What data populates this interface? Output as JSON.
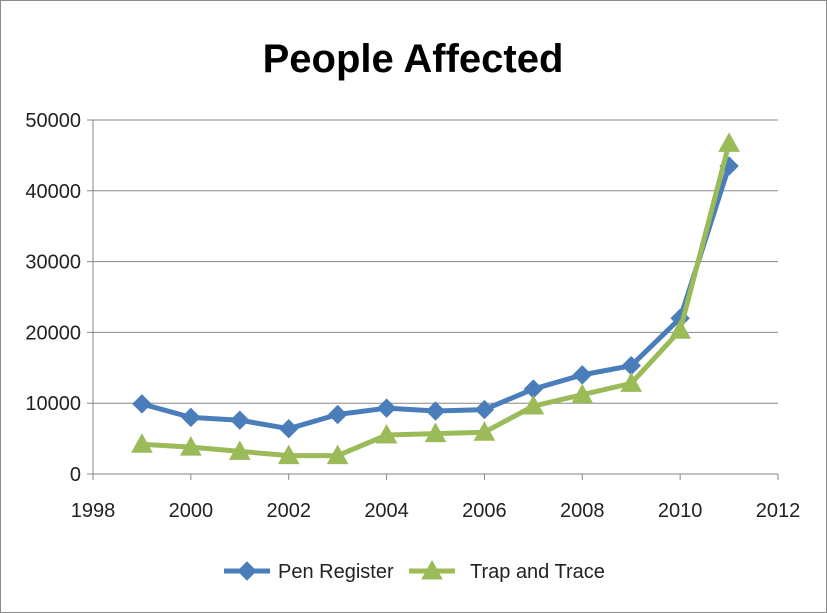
{
  "chart_data": {
    "type": "line",
    "title": "People Affected",
    "xlabel": "",
    "ylabel": "",
    "xlim": [
      1998,
      2012
    ],
    "ylim": [
      0,
      50000
    ],
    "x_ticks": [
      1998,
      2000,
      2002,
      2004,
      2006,
      2008,
      2010,
      2012
    ],
    "y_ticks": [
      0,
      10000,
      20000,
      30000,
      40000,
      50000
    ],
    "grid": "horizontal",
    "legend_position": "bottom",
    "series": [
      {
        "name": "Pen Register",
        "marker": "diamond",
        "color": "#4a7ebb",
        "x": [
          1999,
          2000,
          2001,
          2002,
          2003,
          2004,
          2005,
          2006,
          2007,
          2008,
          2009,
          2010,
          2011
        ],
        "values": [
          9900,
          8000,
          7600,
          6400,
          8400,
          9300,
          8900,
          9100,
          12000,
          14000,
          15300,
          22000,
          43500
        ]
      },
      {
        "name": "Trap and Trace",
        "marker": "triangle",
        "color": "#9bbb59",
        "x": [
          1999,
          2000,
          2001,
          2002,
          2003,
          2004,
          2005,
          2006,
          2007,
          2008,
          2009,
          2010,
          2011
        ],
        "values": [
          4200,
          3800,
          3200,
          2600,
          2600,
          5500,
          5700,
          5900,
          9600,
          11200,
          12800,
          20300,
          46700
        ]
      }
    ]
  }
}
